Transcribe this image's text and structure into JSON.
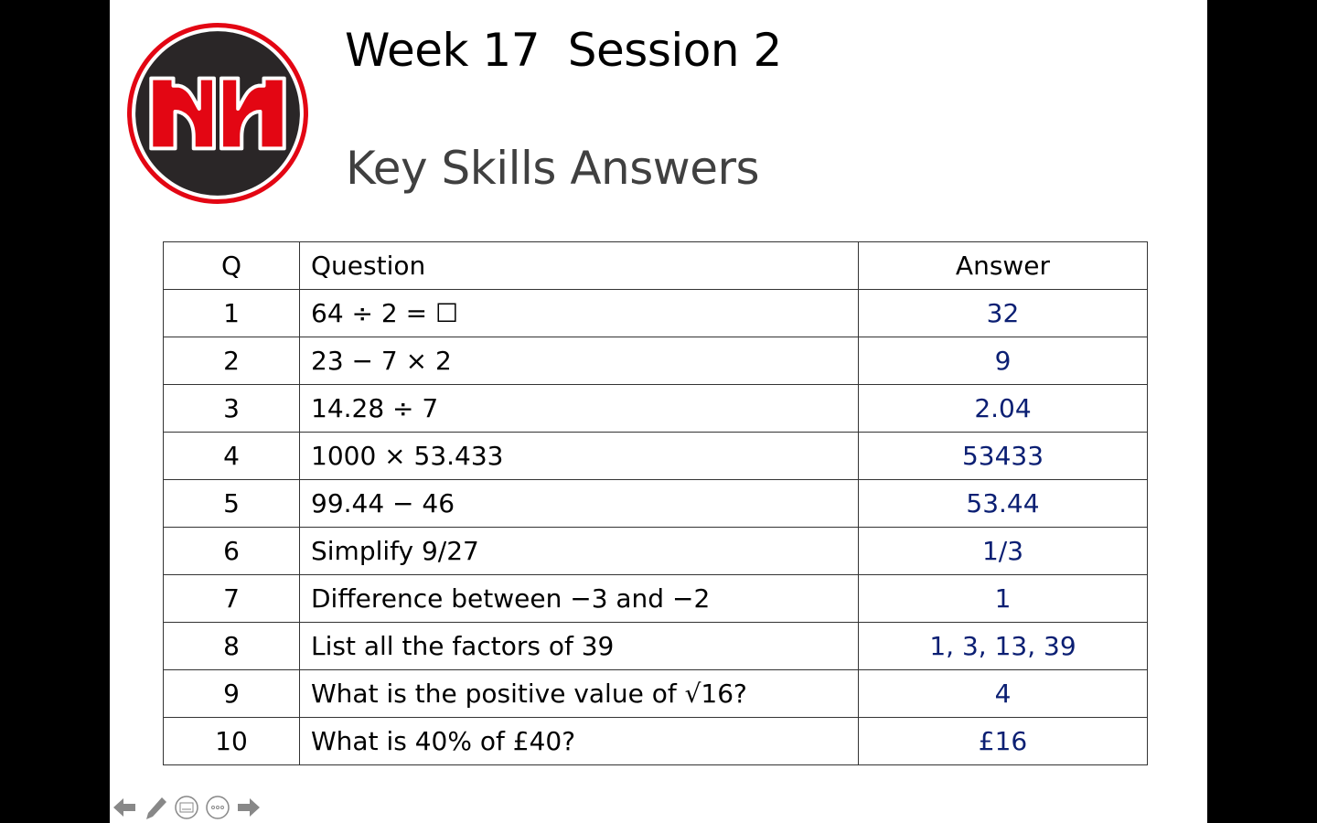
{
  "title": "Week 17  Session 2",
  "subtitle": "Key Skills Answers",
  "colors": {
    "answer": "#0b1f73",
    "logo_red": "#e30613",
    "logo_dark": "#2a2627"
  },
  "table": {
    "headers": [
      "Q",
      "Question",
      "Answer"
    ],
    "rows": [
      {
        "q": "1",
        "question": "64 ÷ 2 = ☐",
        "answer": "32"
      },
      {
        "q": "2",
        "question": "23 − 7 × 2",
        "answer": "9"
      },
      {
        "q": "3",
        "question": "14.28 ÷ 7",
        "answer": "2.04"
      },
      {
        "q": "4",
        "question": "1000 × 53.433",
        "answer": "53433"
      },
      {
        "q": "5",
        "question": "99.44 − 46",
        "answer": "53.44"
      },
      {
        "q": "6",
        "question": "Simplify 9/27",
        "answer": "1/3"
      },
      {
        "q": "7",
        "question": "Difference between −3 and −2",
        "answer": "1"
      },
      {
        "q": "8",
        "question": "List all the factors of 39",
        "answer": "1, 3, 13, 39"
      },
      {
        "q": "9",
        "question": "What is the positive value of √16?",
        "answer": "4"
      },
      {
        "q": "10",
        "question": "What is 40% of £40?",
        "answer": "£16"
      }
    ]
  },
  "controls": [
    "arrow-left-icon",
    "pencil-icon",
    "subtitles-icon",
    "more-icon",
    "arrow-right-icon"
  ]
}
